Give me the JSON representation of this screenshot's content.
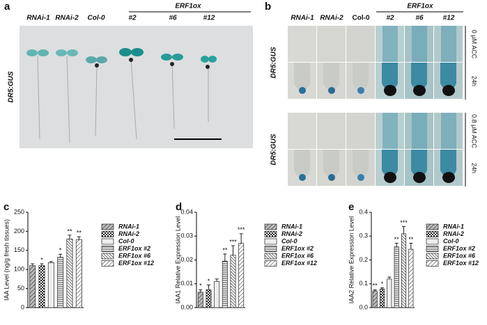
{
  "panels": {
    "a": {
      "label": "a",
      "group": "ERF1ox",
      "columns": [
        "RNAi-1",
        "RNAi-2",
        "Col-0",
        "#2",
        "#6",
        "#12"
      ],
      "side_label": "DR5:GUS"
    },
    "b": {
      "label": "b",
      "group": "ERF1ox",
      "columns": [
        "RNAi-1",
        "RNAi-2",
        "Col-0",
        "#2",
        "#6",
        "#12"
      ],
      "rows": [
        {
          "side_label": "DR5:GUS",
          "condition": "0 μM ACC",
          "time": "24h"
        },
        {
          "side_label": "DR5:GUS",
          "condition": "0.8 μM ACC",
          "time": "24h"
        }
      ]
    }
  },
  "chart_data": [
    {
      "type": "bar",
      "panel_label": "c",
      "y_label": "IAA Level (ng/g fresh tissues)",
      "categories": [
        "RNAi-1",
        "RNAi-2",
        "Col-0",
        "ERF1ox #2",
        "ERF1ox #6",
        "ERF1ox #12"
      ],
      "values": [
        110,
        110,
        118,
        132,
        180,
        178
      ],
      "errors": [
        5,
        5,
        3,
        8,
        10,
        8
      ],
      "annotations": [
        null,
        "*",
        null,
        "*",
        "**",
        "**"
      ],
      "ylim": [
        0,
        250
      ],
      "yticks": [
        0,
        50,
        100,
        150,
        200,
        250
      ]
    },
    {
      "type": "bar",
      "panel_label": "d",
      "y_label": "IAA1 Relative Expression Level",
      "categories": [
        "RNAi-1",
        "RNAi-2",
        "Col-0",
        "ERF1ox #2",
        "ERF1ox #6",
        "ERF1ox #12"
      ],
      "values": [
        0.0065,
        0.0075,
        0.011,
        0.0195,
        0.022,
        0.027
      ],
      "errors": [
        0.001,
        0.002,
        0.001,
        0.003,
        0.004,
        0.004
      ],
      "annotations": [
        "*",
        "*",
        null,
        "**",
        "***",
        "***"
      ],
      "ylim": [
        0,
        0.04
      ],
      "yticks": [
        {
          "value": 0,
          "label": "0.00"
        },
        {
          "value": 0.01,
          "label": "0.01"
        },
        {
          "value": 0.02,
          "label": "0.02"
        },
        {
          "value": 0.03,
          "label": "0.03"
        },
        {
          "value": 0.04,
          "label": "0.04"
        }
      ]
    },
    {
      "type": "bar",
      "panel_label": "e",
      "y_label": "IAA2 Relative Expression Level",
      "categories": [
        "RNAi-1",
        "RNAi-2",
        "Col-0",
        "ERF1ox #2",
        "ERF1ox #6",
        "ERF1ox #12"
      ],
      "values": [
        0.07,
        0.078,
        0.12,
        0.255,
        0.31,
        0.245
      ],
      "errors": [
        0.005,
        0.005,
        0.008,
        0.015,
        0.03,
        0.025
      ],
      "annotations": [
        "**",
        "*",
        null,
        "**",
        "***",
        "**"
      ],
      "ylim": [
        0,
        0.4
      ],
      "yticks": [
        {
          "value": 0,
          "label": "0.0"
        },
        {
          "value": 0.1,
          "label": "0.1"
        },
        {
          "value": 0.2,
          "label": "0.2"
        },
        {
          "value": 0.3,
          "label": "0.3"
        },
        {
          "value": 0.4,
          "label": "0.4"
        }
      ]
    }
  ]
}
